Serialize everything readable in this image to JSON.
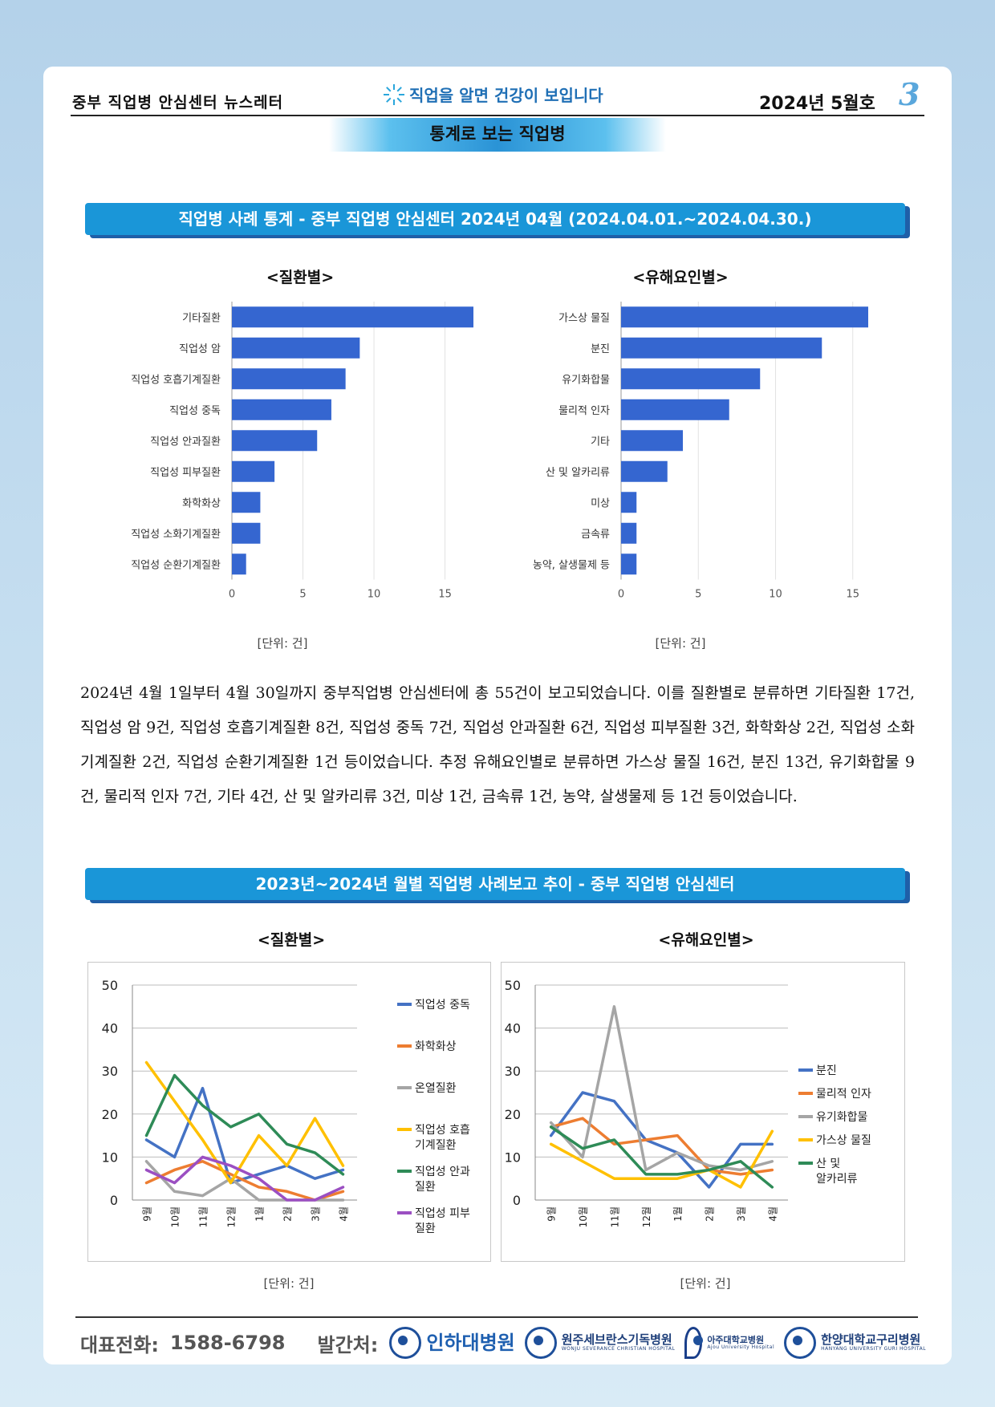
{
  "header": {
    "newsletter": "중부 직업병 안심센터 뉴스레터",
    "slogan": "직업을 알면 건강이 보입니다",
    "issue": "2024년 5월호",
    "page_no": "3",
    "section": "통계로 보는 직업병"
  },
  "section1_title": "직업병 사례 통계 - 중부 직업병 안심센터  2024년 04월 (2024.04.01.~2024.04.30.)",
  "section2_title": "2023년~2024년 월별 직업병 사례보고 추이 - 중부 직업병 안심센터",
  "unit_label": "[단위: 건]",
  "paragraph": "2024년 4월 1일부터 4월 30일까지 중부직업병 안심센터에 총 55건이 보고되었습니다. 이를 질환별로 분류하면 기타질환 17건, 직업성 암 9건, 직업성 호흡기계질환 8건, 직업성 중독 7건, 직업성 안과질환 6건, 직업성 피부질환 3건, 화학화상 2건, 직업성 소화기계질환 2건, 직업성 순환기계질환 1건 등이었습니다. 추정 유해요인별로 분류하면 가스상 물질 16건, 분진 13건, 유기화합물 9건, 물리적 인자 7건, 기타 4건, 산 및 알카리류 3건, 미상 1건, 금속류 1건, 농약, 살생물제 등 1건 등이었습니다.",
  "chart_data": [
    {
      "type": "bar",
      "orientation": "horizontal",
      "title": "<질환별>",
      "categories": [
        "기타질환",
        "직업성 암",
        "직업성 호흡기계질환",
        "직업성 중독",
        "직업성 안과질환",
        "직업성 피부질환",
        "화학화상",
        "직업성 소화기계질환",
        "직업성 순환기계질환"
      ],
      "values": [
        17,
        9,
        8,
        7,
        6,
        3,
        2,
        2,
        1
      ],
      "xlim": [
        0,
        17
      ],
      "xticks": [
        0,
        5,
        10,
        15
      ],
      "color": "#3566d0"
    },
    {
      "type": "bar",
      "orientation": "horizontal",
      "title": "<유해요인별>",
      "categories": [
        "가스상 물질",
        "분진",
        "유기화합물",
        "물리적 인자",
        "기타",
        "산 및 알카리류",
        "미상",
        "금속류",
        "농약, 살생물제 등"
      ],
      "values": [
        16,
        13,
        9,
        7,
        4,
        3,
        1,
        1,
        1
      ],
      "xlim": [
        0,
        16
      ],
      "xticks": [
        0,
        5,
        10,
        15
      ],
      "color": "#3566d0"
    },
    {
      "type": "line",
      "title": "<질환별>",
      "categories": [
        "9월",
        "10월",
        "11월",
        "12월",
        "1월",
        "2월",
        "3월",
        "4월"
      ],
      "ylim": [
        0,
        50
      ],
      "yticks": [
        0,
        10,
        20,
        30,
        40,
        50
      ],
      "series": [
        {
          "name": "직업성 중독",
          "color": "#4472c4",
          "values": [
            14,
            10,
            26,
            4,
            6,
            8,
            5,
            7
          ]
        },
        {
          "name": "화학화상",
          "color": "#ed7d31",
          "values": [
            4,
            7,
            9,
            6,
            3,
            2,
            0,
            2
          ]
        },
        {
          "name": "온열질환",
          "color": "#a5a5a5",
          "values": [
            9,
            2,
            1,
            5,
            0,
            0,
            0,
            0
          ]
        },
        {
          "name": "직업성 호흡 기계질환",
          "color": "#ffc000",
          "values": [
            32,
            23,
            14,
            4,
            15,
            8,
            19,
            8
          ]
        },
        {
          "name": "직업성 안과 질환",
          "color": "#2e8b57",
          "values": [
            15,
            29,
            22,
            17,
            20,
            13,
            11,
            6
          ]
        },
        {
          "name": "직업성 피부 질환",
          "color": "#9b4fc2",
          "values": [
            7,
            4,
            10,
            8,
            5,
            0,
            0,
            3
          ]
        }
      ]
    },
    {
      "type": "line",
      "title": "<유해요인별>",
      "categories": [
        "9월",
        "10월",
        "11월",
        "12월",
        "1월",
        "2월",
        "3월",
        "4월"
      ],
      "ylim": [
        0,
        50
      ],
      "yticks": [
        0,
        10,
        20,
        30,
        40,
        50
      ],
      "series": [
        {
          "name": "분진",
          "color": "#4472c4",
          "values": [
            15,
            25,
            23,
            14,
            11,
            3,
            13,
            13
          ]
        },
        {
          "name": "물리적 인자",
          "color": "#ed7d31",
          "values": [
            17,
            19,
            13,
            14,
            15,
            7,
            6,
            7
          ]
        },
        {
          "name": "유기화합물",
          "color": "#a5a5a5",
          "values": [
            18,
            10,
            45,
            7,
            11,
            8,
            7,
            9
          ]
        },
        {
          "name": "가스상 물질",
          "color": "#ffc000",
          "values": [
            13,
            9,
            5,
            5,
            5,
            7,
            3,
            16
          ]
        },
        {
          "name": "산 및 알카리류",
          "color": "#2e8b57",
          "values": [
            17,
            12,
            14,
            6,
            6,
            7,
            9,
            3
          ]
        }
      ]
    }
  ],
  "footer": {
    "phone_label": "대표전화:",
    "phone": "1588-6798",
    "publisher_label": "발간처:",
    "hospitals": [
      {
        "name": "인하대병원",
        "sub": ""
      },
      {
        "name": "원주세브란스기독병원",
        "sub": "WONJU SEVERANCE CHRISTIAN HOSPITAL"
      },
      {
        "name": "아주대학교병원",
        "sub": "Ajou University Hospital"
      },
      {
        "name": "한양대학교구리병원",
        "sub": "HANYANG UNIVERSITY GURI HOSPITAL"
      }
    ]
  }
}
